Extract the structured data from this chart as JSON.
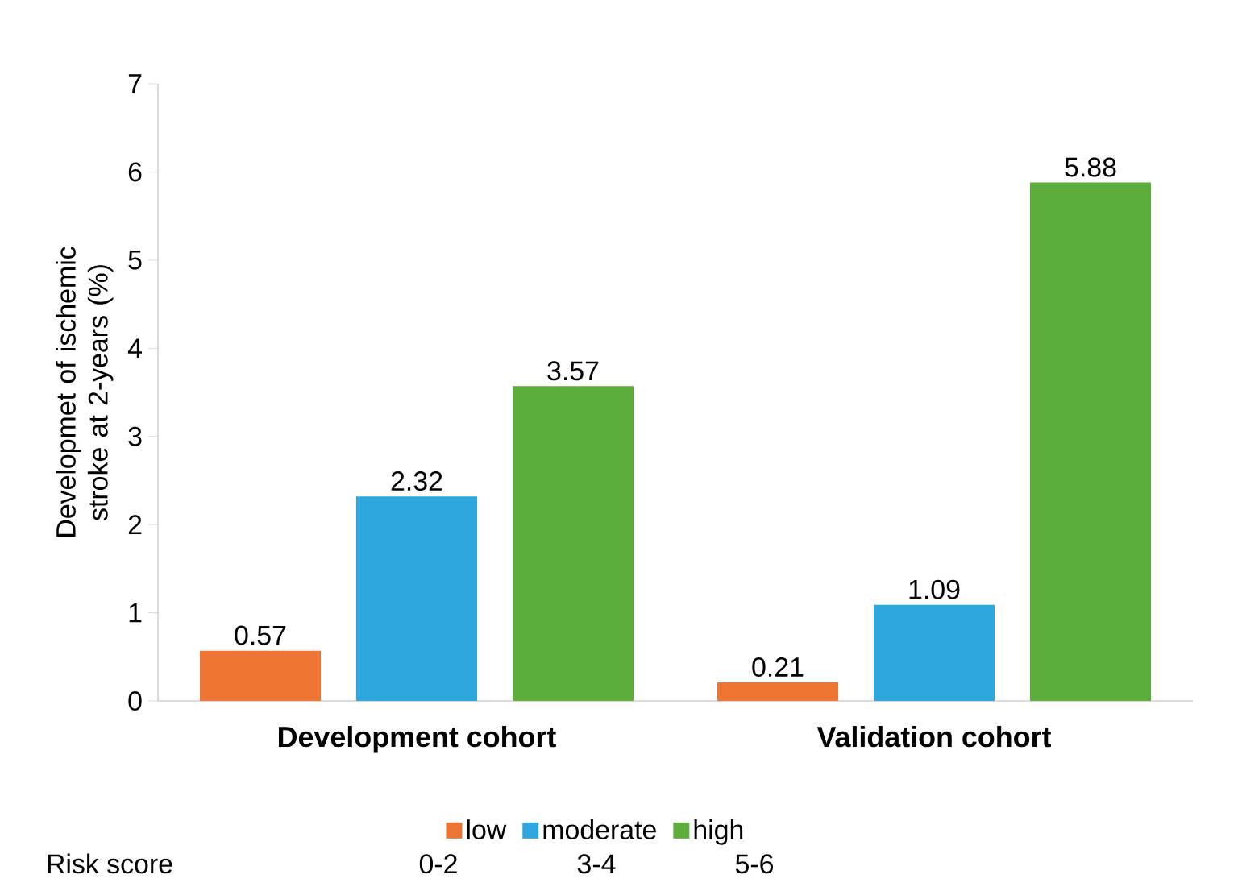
{
  "chart_data": {
    "type": "bar",
    "ylabel": "Developmet of ischemic stroke at 2-years (%)",
    "categories": [
      "Development cohort",
      "Validation cohort"
    ],
    "series": [
      {
        "name": "low",
        "color": "#ed7433",
        "values": [
          0.57,
          0.21
        ]
      },
      {
        "name": "moderate",
        "color": "#2fa6de",
        "values": [
          2.32,
          1.09
        ]
      },
      {
        "name": "high",
        "color": "#5cad3c",
        "values": [
          3.57,
          5.88
        ]
      }
    ],
    "ylim": [
      0,
      7
    ],
    "yticks": [
      0,
      1,
      2,
      3,
      4,
      5,
      6,
      7
    ],
    "data_labels": true,
    "legend": "bottom",
    "grid": false,
    "legend_title": "Risk score",
    "annotations": [
      "0-2",
      "3-4",
      "5-6"
    ]
  }
}
